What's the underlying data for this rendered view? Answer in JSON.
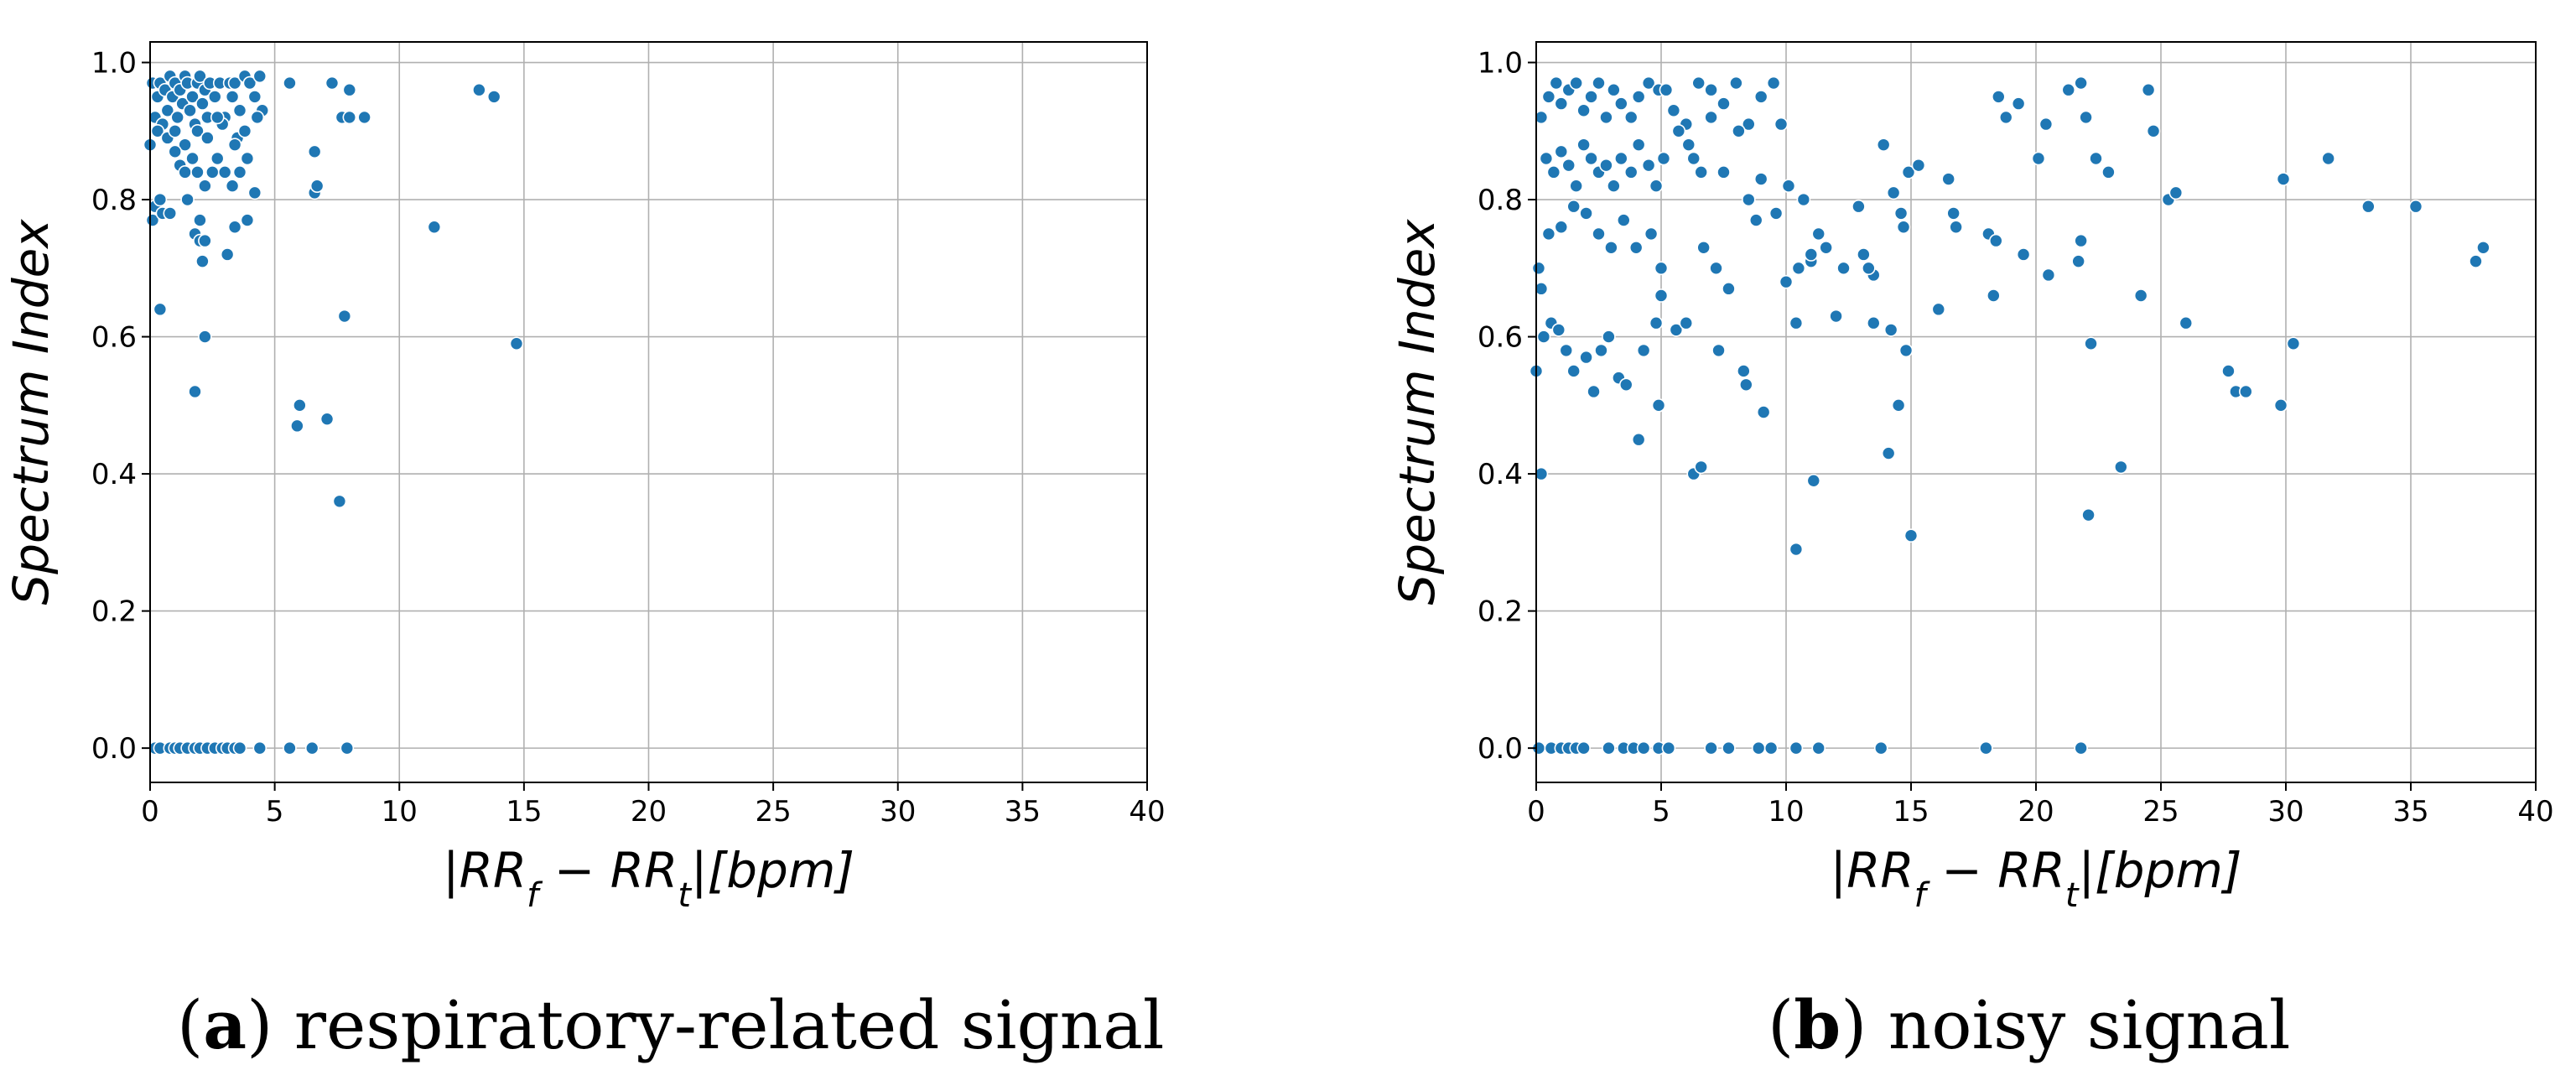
{
  "chart_data": [
    {
      "type": "scatter",
      "id": "a",
      "xlabel": "|RR_f − RR_t|[bpm]",
      "ylabel": "Spectrum Index",
      "xlim": [
        0,
        40
      ],
      "ylim": [
        -0.05,
        1.03
      ],
      "xticks": [
        "0",
        "5",
        "10",
        "15",
        "20",
        "25",
        "30",
        "35",
        "40"
      ],
      "yticks": [
        "0.0",
        "0.2",
        "0.4",
        "0.6",
        "0.8",
        "1.0"
      ],
      "grid": true,
      "color": "#1f77b4",
      "caption_label": "a",
      "caption_text": "respiratory-related signal",
      "points": [
        [
          0.1,
          0.97
        ],
        [
          0.2,
          0.92
        ],
        [
          0.3,
          0.95
        ],
        [
          0.4,
          0.97
        ],
        [
          0.5,
          0.91
        ],
        [
          0.6,
          0.96
        ],
        [
          0.7,
          0.93
        ],
        [
          0.8,
          0.98
        ],
        [
          0.9,
          0.95
        ],
        [
          1.0,
          0.97
        ],
        [
          1.1,
          0.92
        ],
        [
          1.2,
          0.96
        ],
        [
          1.3,
          0.94
        ],
        [
          1.4,
          0.98
        ],
        [
          1.5,
          0.97
        ],
        [
          1.6,
          0.93
        ],
        [
          1.7,
          0.95
        ],
        [
          1.8,
          0.91
        ],
        [
          1.9,
          0.97
        ],
        [
          2.0,
          0.98
        ],
        [
          2.1,
          0.94
        ],
        [
          2.2,
          0.96
        ],
        [
          2.3,
          0.92
        ],
        [
          2.4,
          0.97
        ],
        [
          2.6,
          0.95
        ],
        [
          2.8,
          0.97
        ],
        [
          3.0,
          0.92
        ],
        [
          3.2,
          0.97
        ],
        [
          3.4,
          0.97
        ],
        [
          3.6,
          0.93
        ],
        [
          3.8,
          0.98
        ],
        [
          4.0,
          0.97
        ],
        [
          4.2,
          0.95
        ],
        [
          4.4,
          0.98
        ],
        [
          4.5,
          0.93
        ],
        [
          0.3,
          0.9
        ],
        [
          0.7,
          0.89
        ],
        [
          1.0,
          0.9
        ],
        [
          1.4,
          0.88
        ],
        [
          1.9,
          0.9
        ],
        [
          2.3,
          0.89
        ],
        [
          2.9,
          0.91
        ],
        [
          3.5,
          0.89
        ],
        [
          4.3,
          0.92
        ],
        [
          3.3,
          0.95
        ],
        [
          0.0,
          0.88
        ],
        [
          0.1,
          0.77
        ],
        [
          0.2,
          0.79
        ],
        [
          0.4,
          0.8
        ],
        [
          0.5,
          0.78
        ],
        [
          0.8,
          0.78
        ],
        [
          1.0,
          0.87
        ],
        [
          1.2,
          0.85
        ],
        [
          1.4,
          0.84
        ],
        [
          1.5,
          0.8
        ],
        [
          1.7,
          0.86
        ],
        [
          1.9,
          0.84
        ],
        [
          2.0,
          0.77
        ],
        [
          2.2,
          0.82
        ],
        [
          2.5,
          0.84
        ],
        [
          2.7,
          0.86
        ],
        [
          3.0,
          0.84
        ],
        [
          3.3,
          0.82
        ],
        [
          3.6,
          0.84
        ],
        [
          3.9,
          0.86
        ],
        [
          4.2,
          0.81
        ],
        [
          1.1,
          0.92
        ],
        [
          2.7,
          0.92
        ],
        [
          3.4,
          0.88
        ],
        [
          3.8,
          0.9
        ],
        [
          1.8,
          0.75
        ],
        [
          2.0,
          0.74
        ],
        [
          2.2,
          0.74
        ],
        [
          2.1,
          0.71
        ],
        [
          3.1,
          0.72
        ],
        [
          3.4,
          0.76
        ],
        [
          3.9,
          0.77
        ],
        [
          0.4,
          0.64
        ],
        [
          2.2,
          0.6
        ],
        [
          1.8,
          0.52
        ],
        [
          5.6,
          0.97
        ],
        [
          6.6,
          0.81
        ],
        [
          6.7,
          0.82
        ],
        [
          6.6,
          0.87
        ],
        [
          7.3,
          0.97
        ],
        [
          7.7,
          0.92
        ],
        [
          8.0,
          0.96
        ],
        [
          8.0,
          0.92
        ],
        [
          8.6,
          0.92
        ],
        [
          7.8,
          0.63
        ],
        [
          5.9,
          0.47
        ],
        [
          6.0,
          0.5
        ],
        [
          7.1,
          0.48
        ],
        [
          7.6,
          0.36
        ],
        [
          11.4,
          0.76
        ],
        [
          13.2,
          0.96
        ],
        [
          13.8,
          0.95
        ],
        [
          14.7,
          0.59
        ],
        [
          0.2,
          0.0
        ],
        [
          0.4,
          0.0
        ],
        [
          0.8,
          0.0
        ],
        [
          1.0,
          0.0
        ],
        [
          1.2,
          0.0
        ],
        [
          1.5,
          0.0
        ],
        [
          1.8,
          0.0
        ],
        [
          2.0,
          0.0
        ],
        [
          2.3,
          0.0
        ],
        [
          2.6,
          0.0
        ],
        [
          2.9,
          0.0
        ],
        [
          3.1,
          0.0
        ],
        [
          3.4,
          0.0
        ],
        [
          3.6,
          0.0
        ],
        [
          4.4,
          0.0
        ],
        [
          5.6,
          0.0
        ],
        [
          6.5,
          0.0
        ],
        [
          7.9,
          0.0
        ]
      ]
    },
    {
      "type": "scatter",
      "id": "b",
      "xlabel": "|RR_f − RR_t|[bpm]",
      "ylabel": "Spectrum Index",
      "xlim": [
        0,
        40
      ],
      "ylim": [
        -0.05,
        1.03
      ],
      "xticks": [
        "0",
        "5",
        "10",
        "15",
        "20",
        "25",
        "30",
        "35",
        "40"
      ],
      "yticks": [
        "0.0",
        "0.2",
        "0.4",
        "0.6",
        "0.8",
        "1.0"
      ],
      "grid": true,
      "color": "#1f77b4",
      "caption_label": "b",
      "caption_text": "noisy signal",
      "points": [
        [
          0.2,
          0.92
        ],
        [
          0.5,
          0.95
        ],
        [
          0.8,
          0.97
        ],
        [
          1.0,
          0.94
        ],
        [
          1.3,
          0.96
        ],
        [
          1.6,
          0.97
        ],
        [
          1.9,
          0.93
        ],
        [
          2.2,
          0.95
        ],
        [
          2.5,
          0.97
        ],
        [
          2.8,
          0.92
        ],
        [
          3.1,
          0.96
        ],
        [
          3.4,
          0.94
        ],
        [
          3.8,
          0.92
        ],
        [
          4.1,
          0.95
        ],
        [
          4.5,
          0.97
        ],
        [
          4.9,
          0.96
        ],
        [
          5.2,
          0.96
        ],
        [
          5.5,
          0.93
        ],
        [
          6.0,
          0.91
        ],
        [
          6.5,
          0.97
        ],
        [
          7.0,
          0.96
        ],
        [
          7.5,
          0.94
        ],
        [
          8.0,
          0.97
        ],
        [
          8.5,
          0.91
        ],
        [
          9.0,
          0.95
        ],
        [
          9.5,
          0.97
        ],
        [
          9.8,
          0.91
        ],
        [
          0.4,
          0.86
        ],
        [
          0.7,
          0.84
        ],
        [
          1.0,
          0.87
        ],
        [
          1.3,
          0.85
        ],
        [
          1.6,
          0.82
        ],
        [
          1.9,
          0.88
        ],
        [
          2.2,
          0.86
        ],
        [
          2.5,
          0.84
        ],
        [
          2.8,
          0.85
        ],
        [
          3.1,
          0.82
        ],
        [
          3.4,
          0.86
        ],
        [
          3.8,
          0.84
        ],
        [
          4.1,
          0.88
        ],
        [
          4.5,
          0.85
        ],
        [
          4.8,
          0.82
        ],
        [
          5.1,
          0.86
        ],
        [
          5.7,
          0.9
        ],
        [
          6.1,
          0.88
        ],
        [
          6.3,
          0.86
        ],
        [
          6.6,
          0.84
        ],
        [
          7.0,
          0.92
        ],
        [
          7.5,
          0.84
        ],
        [
          8.1,
          0.9
        ],
        [
          8.5,
          0.8
        ],
        [
          9.0,
          0.83
        ],
        [
          9.6,
          0.78
        ],
        [
          10.1,
          0.82
        ],
        [
          10.7,
          0.8
        ],
        [
          0.5,
          0.75
        ],
        [
          1.0,
          0.76
        ],
        [
          1.5,
          0.79
        ],
        [
          2.0,
          0.78
        ],
        [
          2.5,
          0.75
        ],
        [
          3.0,
          0.73
        ],
        [
          3.5,
          0.77
        ],
        [
          4.0,
          0.73
        ],
        [
          4.6,
          0.75
        ],
        [
          5.0,
          0.7
        ],
        [
          6.7,
          0.73
        ],
        [
          7.2,
          0.7
        ],
        [
          7.7,
          0.67
        ],
        [
          8.8,
          0.77
        ],
        [
          10.5,
          0.7
        ],
        [
          11.0,
          0.71
        ],
        [
          11.3,
          0.75
        ],
        [
          11.6,
          0.73
        ],
        [
          12.3,
          0.7
        ],
        [
          12.9,
          0.79
        ],
        [
          13.1,
          0.72
        ],
        [
          13.5,
          0.69
        ],
        [
          13.3,
          0.7
        ],
        [
          13.9,
          0.88
        ],
        [
          14.3,
          0.81
        ],
        [
          14.6,
          0.78
        ],
        [
          14.7,
          0.76
        ],
        [
          14.9,
          0.84
        ],
        [
          15.3,
          0.85
        ],
        [
          16.5,
          0.83
        ],
        [
          16.7,
          0.78
        ],
        [
          16.8,
          0.76
        ],
        [
          18.1,
          0.75
        ],
        [
          18.4,
          0.74
        ],
        [
          18.5,
          0.95
        ],
        [
          18.8,
          0.92
        ],
        [
          19.3,
          0.94
        ],
        [
          19.5,
          0.72
        ],
        [
          20.4,
          0.91
        ],
        [
          21.3,
          0.96
        ],
        [
          21.8,
          0.97
        ],
        [
          21.8,
          0.74
        ],
        [
          21.7,
          0.71
        ],
        [
          22.4,
          0.86
        ],
        [
          22.9,
          0.84
        ],
        [
          22.0,
          0.92
        ],
        [
          24.2,
          0.66
        ],
        [
          24.5,
          0.96
        ],
        [
          24.7,
          0.9
        ],
        [
          25.3,
          0.8
        ],
        [
          25.6,
          0.81
        ],
        [
          29.9,
          0.83
        ],
        [
          31.7,
          0.86
        ],
        [
          33.3,
          0.79
        ],
        [
          35.2,
          0.79
        ],
        [
          37.6,
          0.71
        ],
        [
          37.9,
          0.73
        ],
        [
          0.1,
          0.7
        ],
        [
          0.3,
          0.6
        ],
        [
          0.6,
          0.62
        ],
        [
          0.9,
          0.61
        ],
        [
          1.2,
          0.58
        ],
        [
          1.5,
          0.55
        ],
        [
          2.0,
          0.57
        ],
        [
          2.3,
          0.52
        ],
        [
          2.6,
          0.58
        ],
        [
          2.9,
          0.6
        ],
        [
          3.3,
          0.54
        ],
        [
          3.6,
          0.53
        ],
        [
          4.3,
          0.58
        ],
        [
          4.8,
          0.62
        ],
        [
          5.0,
          0.66
        ],
        [
          5.6,
          0.61
        ],
        [
          6.0,
          0.62
        ],
        [
          7.3,
          0.58
        ],
        [
          8.3,
          0.55
        ],
        [
          8.4,
          0.53
        ],
        [
          9.1,
          0.49
        ],
        [
          10.0,
          0.68
        ],
        [
          10.4,
          0.62
        ],
        [
          11.0,
          0.72
        ],
        [
          12.0,
          0.63
        ],
        [
          13.5,
          0.62
        ],
        [
          14.2,
          0.61
        ],
        [
          14.8,
          0.58
        ],
        [
          16.1,
          0.64
        ],
        [
          18.3,
          0.66
        ],
        [
          20.1,
          0.86
        ],
        [
          20.5,
          0.69
        ],
        [
          22.2,
          0.59
        ],
        [
          26.0,
          0.62
        ],
        [
          27.7,
          0.55
        ],
        [
          28.0,
          0.52
        ],
        [
          28.4,
          0.52
        ],
        [
          29.8,
          0.5
        ],
        [
          30.3,
          0.59
        ],
        [
          0.0,
          0.55
        ],
        [
          0.2,
          0.67
        ],
        [
          0.2,
          0.4
        ],
        [
          4.1,
          0.45
        ],
        [
          4.9,
          0.5
        ],
        [
          6.3,
          0.4
        ],
        [
          6.6,
          0.41
        ],
        [
          10.4,
          0.29
        ],
        [
          11.1,
          0.39
        ],
        [
          14.1,
          0.43
        ],
        [
          14.5,
          0.5
        ],
        [
          15.0,
          0.31
        ],
        [
          22.1,
          0.34
        ],
        [
          23.4,
          0.41
        ],
        [
          0.1,
          0.0
        ],
        [
          0.6,
          0.0
        ],
        [
          1.0,
          0.0
        ],
        [
          1.3,
          0.0
        ],
        [
          1.6,
          0.0
        ],
        [
          1.9,
          0.0
        ],
        [
          2.9,
          0.0
        ],
        [
          3.5,
          0.0
        ],
        [
          3.9,
          0.0
        ],
        [
          4.3,
          0.0
        ],
        [
          4.9,
          0.0
        ],
        [
          5.3,
          0.0
        ],
        [
          7.0,
          0.0
        ],
        [
          7.7,
          0.0
        ],
        [
          8.9,
          0.0
        ],
        [
          9.4,
          0.0
        ],
        [
          10.4,
          0.0
        ],
        [
          11.3,
          0.0
        ],
        [
          13.8,
          0.0
        ],
        [
          18.0,
          0.0
        ],
        [
          21.8,
          0.0
        ]
      ]
    }
  ]
}
